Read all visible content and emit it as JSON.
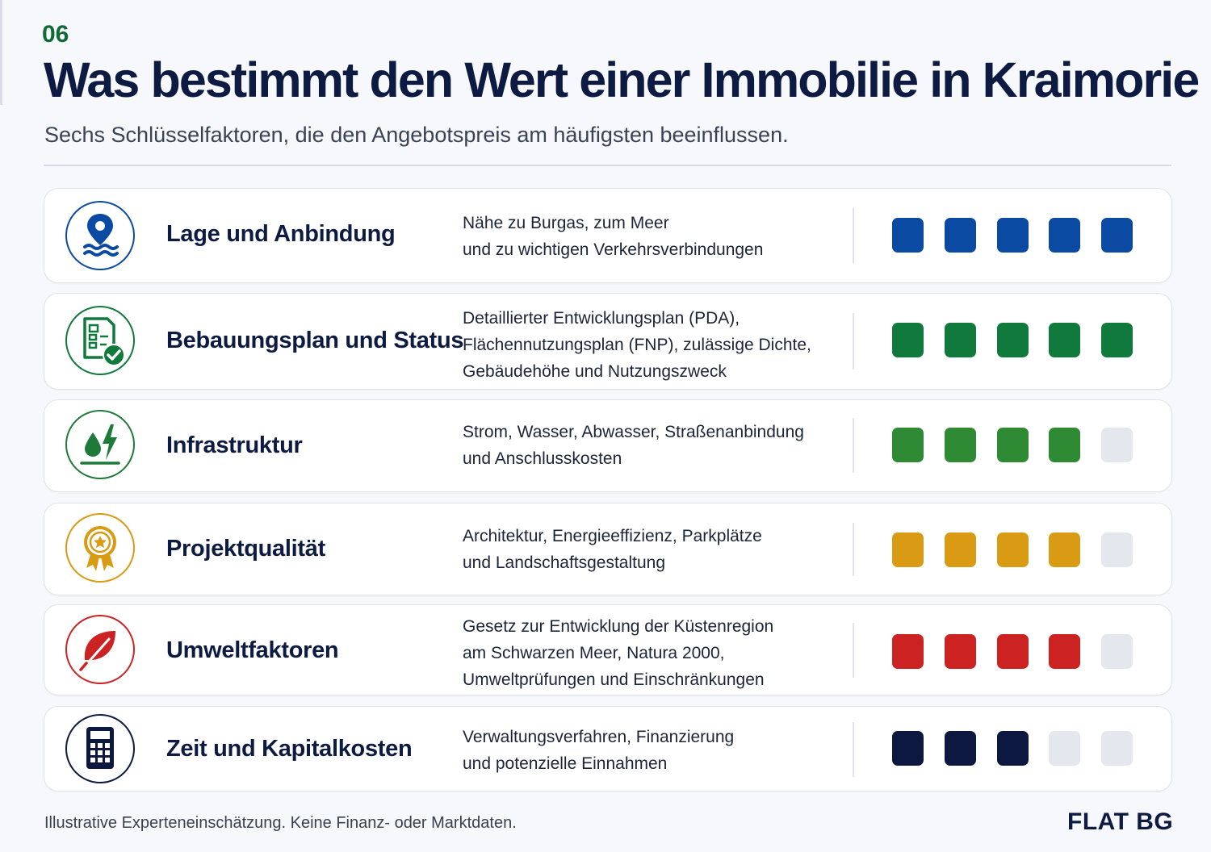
{
  "header": {
    "page_number": "06",
    "title": "Was bestimmt den Wert einer Immobilie in Kraimorie",
    "subtitle": "Sechs Schlüsselfaktoren, die den Angebotspreis am häufigsten beeinflussen."
  },
  "factors": [
    {
      "icon": "location-water-icon",
      "name": "Lage und Anbindung",
      "description": [
        "Nähe zu Burgas, zum Meer",
        "und zu wichtigen Verkehrsverbindungen"
      ],
      "rating": 5,
      "max_rating": 5,
      "color": "#0b4aa2"
    },
    {
      "icon": "document-check-icon",
      "name": "Bebauungsplan und Status",
      "description": [
        "Detaillierter Entwicklungsplan (PDA),",
        "Flächennutzungsplan (FNP), zulässige Dichte,",
        "Gebäudehöhe und Nutzungszweck"
      ],
      "rating": 5,
      "max_rating": 5,
      "color": "#0f7a3b"
    },
    {
      "icon": "water-power-icon",
      "name": "Infrastruktur",
      "description": [
        "Strom, Wasser, Abwasser, Straßenanbindung",
        "und Anschlusskosten"
      ],
      "rating": 4,
      "max_rating": 5,
      "color": "#2e8b34"
    },
    {
      "icon": "award-badge-icon",
      "name": "Projektqualität",
      "description": [
        "Architektur, Energieeffizienz, Parkplätze",
        "und Landschaftsgestaltung"
      ],
      "rating": 4,
      "max_rating": 5,
      "color": "#d99a14"
    },
    {
      "icon": "leaf-icon",
      "name": "Umweltfaktoren",
      "description": [
        "Gesetz zur Entwicklung der Küstenregion",
        "am Schwarzen Meer, Natura 2000,",
        "Umweltprüfungen und Einschränkungen"
      ],
      "rating": 4,
      "max_rating": 5,
      "color": "#cc2222"
    },
    {
      "icon": "calculator-icon",
      "name": "Zeit und Kapitalkosten",
      "description": [
        "Verwaltungsverfahren, Finanzierung",
        "und potenzielle Einnahmen"
      ],
      "rating": 3,
      "max_rating": 5,
      "color": "#0c1840"
    }
  ],
  "empty_rating_color": "#e4e7ed",
  "footer": {
    "note": "Illustrative Experteneinschätzung. Keine Finanz- oder Marktdaten.",
    "brand": "FLAT BG"
  }
}
